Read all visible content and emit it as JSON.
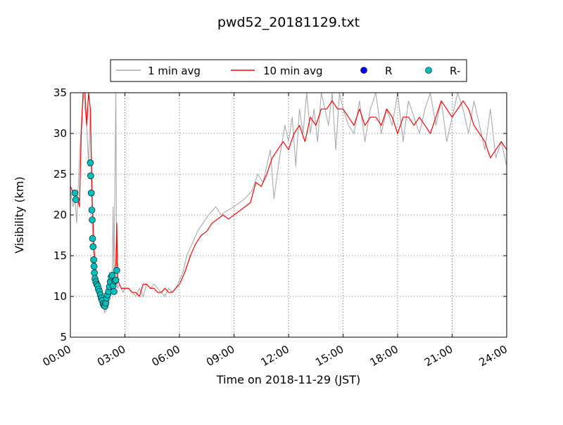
{
  "chart_data": {
    "type": "line",
    "title": "pwd52_20181129.txt",
    "xlabel": "Time on 2018-11-29 (JST)",
    "ylabel": "Visibility (km)",
    "xlim": [
      "00:00",
      "24:00"
    ],
    "ylim": [
      5,
      35
    ],
    "xticks": [
      "00:00",
      "03:00",
      "06:00",
      "09:00",
      "12:00",
      "15:00",
      "18:00",
      "21:00",
      "24:00"
    ],
    "yticks": [
      "5",
      "10",
      "15",
      "20",
      "25",
      "30",
      "35"
    ],
    "grid": true,
    "legend_position": "top-center",
    "legend": [
      "1 min avg",
      "10 min avg",
      "R",
      "R-"
    ],
    "colors": {
      "one_min": "#aaaaaa",
      "ten_min": "#ff0000",
      "R": "#0000ff",
      "R_minus": "#00bfbf"
    },
    "series": [
      {
        "name": "1 min avg",
        "type": "line",
        "x": [
          0.0,
          0.15,
          0.25,
          0.35,
          0.5,
          0.7,
          0.9,
          1.0,
          1.1,
          1.15,
          1.2,
          1.25,
          1.3,
          1.4,
          1.5,
          1.6,
          1.7,
          1.8,
          1.9,
          2.0,
          2.1,
          2.2,
          2.3,
          2.35,
          2.4,
          2.45,
          2.5,
          2.55,
          2.6,
          2.7,
          2.8,
          2.9,
          3.0,
          3.2,
          3.4,
          3.6,
          3.8,
          4.0,
          4.2,
          4.4,
          4.6,
          4.8,
          5.0,
          5.2,
          5.4,
          5.6,
          5.8,
          6.0,
          6.2,
          6.4,
          6.6,
          6.8,
          7.0,
          7.3,
          7.6,
          8.0,
          8.3,
          8.6,
          9.0,
          9.3,
          9.6,
          10.0,
          10.3,
          10.6,
          11.0,
          11.2,
          11.5,
          11.8,
          12.0,
          12.2,
          12.4,
          12.6,
          12.8,
          13.0,
          13.2,
          13.4,
          13.6,
          13.8,
          14.0,
          14.2,
          14.4,
          14.6,
          14.8,
          15.0,
          15.3,
          15.6,
          15.9,
          16.2,
          16.5,
          16.8,
          17.1,
          17.4,
          17.7,
          18.0,
          18.3,
          18.6,
          18.9,
          19.2,
          19.5,
          19.8,
          20.1,
          20.4,
          20.7,
          21.0,
          21.3,
          21.6,
          21.9,
          22.2,
          22.5,
          22.8,
          23.1,
          23.4,
          23.7,
          24.0
        ],
        "y": [
          23,
          21,
          22,
          19,
          27,
          35,
          31,
          26,
          33,
          25,
          19,
          16,
          14,
          12,
          11,
          10,
          9.5,
          9,
          8,
          8.5,
          10,
          11,
          12,
          21,
          12,
          24,
          35,
          12,
          11,
          11.5,
          11,
          10.5,
          11,
          11,
          10.5,
          10,
          11,
          10,
          11.5,
          11,
          11.5,
          11,
          10.5,
          10,
          11,
          10.5,
          11,
          12,
          13,
          15,
          16,
          17,
          18,
          19,
          20,
          21,
          20,
          20.5,
          21,
          21.5,
          22,
          23,
          25,
          24,
          28,
          22,
          27,
          31,
          29,
          32,
          26,
          33,
          30,
          35,
          30,
          33,
          29,
          35,
          33,
          31,
          35,
          28,
          35,
          33,
          31,
          30,
          34,
          29,
          33,
          35,
          30,
          33,
          31,
          35,
          29,
          34,
          32,
          30,
          33,
          35,
          31,
          34,
          29,
          32,
          35,
          33,
          30,
          34,
          31,
          28,
          33,
          27,
          29,
          26
        ]
      },
      {
        "name": "10 min avg",
        "type": "line",
        "x": [
          0.0,
          0.2,
          0.4,
          0.5,
          0.6,
          0.7,
          0.8,
          0.9,
          1.0,
          1.1,
          1.2,
          1.3,
          1.4,
          1.5,
          1.6,
          1.7,
          1.8,
          1.9,
          2.0,
          2.1,
          2.2,
          2.3,
          2.4,
          2.5,
          2.55,
          2.6,
          2.7,
          2.8,
          3.0,
          3.2,
          3.4,
          3.6,
          3.8,
          4.0,
          4.2,
          4.4,
          4.6,
          4.8,
          5.0,
          5.2,
          5.4,
          5.6,
          5.8,
          6.0,
          6.3,
          6.6,
          6.9,
          7.2,
          7.5,
          7.8,
          8.1,
          8.4,
          8.7,
          9.0,
          9.3,
          9.6,
          9.9,
          10.2,
          10.5,
          10.8,
          11.1,
          11.4,
          11.7,
          12.0,
          12.3,
          12.6,
          12.9,
          13.2,
          13.5,
          13.8,
          14.1,
          14.4,
          14.7,
          15.0,
          15.3,
          15.6,
          15.9,
          16.2,
          16.5,
          16.8,
          17.1,
          17.4,
          17.7,
          18.0,
          18.3,
          18.6,
          18.9,
          19.2,
          19.5,
          19.8,
          20.1,
          20.4,
          20.7,
          21.0,
          21.3,
          21.6,
          21.9,
          22.2,
          22.5,
          22.8,
          23.1,
          23.4,
          23.7,
          24.0
        ],
        "y": [
          23.5,
          22.5,
          22,
          21,
          30,
          35,
          35,
          31,
          35,
          33,
          22,
          16,
          13,
          11.5,
          10.5,
          10,
          9.5,
          9,
          9.5,
          10,
          10.5,
          11.5,
          12.5,
          14,
          19,
          12,
          11.5,
          11,
          11,
          11,
          10.5,
          10.5,
          10,
          11.5,
          11.5,
          11,
          11,
          10.5,
          10.5,
          11,
          10.5,
          10.5,
          11,
          11.5,
          13,
          15,
          16.5,
          17.5,
          18,
          19,
          19.5,
          20,
          19.5,
          20,
          20.5,
          21,
          21.5,
          24,
          23.5,
          25,
          27,
          28,
          29,
          28,
          30,
          31,
          29,
          32,
          31,
          33,
          33,
          34,
          33,
          33,
          32,
          31,
          33,
          31,
          32,
          32,
          31,
          33,
          32,
          30,
          32,
          32,
          31,
          32,
          31,
          30,
          32,
          34,
          33,
          32,
          33,
          34,
          33,
          31,
          30,
          29,
          27,
          28,
          29,
          28
        ]
      },
      {
        "name": "R-",
        "type": "scatter",
        "x": [
          0.25,
          0.3,
          1.1,
          1.12,
          1.15,
          1.18,
          1.2,
          1.22,
          1.25,
          1.28,
          1.3,
          1.32,
          1.35,
          1.4,
          1.45,
          1.5,
          1.55,
          1.6,
          1.65,
          1.7,
          1.75,
          1.8,
          1.85,
          1.9,
          1.95,
          2.0,
          2.05,
          2.1,
          2.15,
          2.2,
          2.25,
          2.3,
          2.35,
          2.4,
          2.45,
          2.5,
          2.55
        ],
        "y": [
          22.7,
          21.9,
          26.4,
          24.8,
          22.7,
          20.6,
          19.4,
          17.1,
          16.1,
          14.5,
          13.7,
          12.9,
          12.2,
          11.8,
          11.5,
          11.3,
          10.9,
          10.6,
          10.2,
          9.8,
          9.5,
          9.1,
          8.9,
          8.8,
          9.2,
          9.8,
          10.2,
          10.6,
          11.2,
          11.8,
          12.4,
          12.6,
          11.3,
          10.6,
          11.9,
          12.0,
          13.2
        ]
      },
      {
        "name": "R",
        "type": "scatter",
        "x": [],
        "y": []
      }
    ]
  }
}
